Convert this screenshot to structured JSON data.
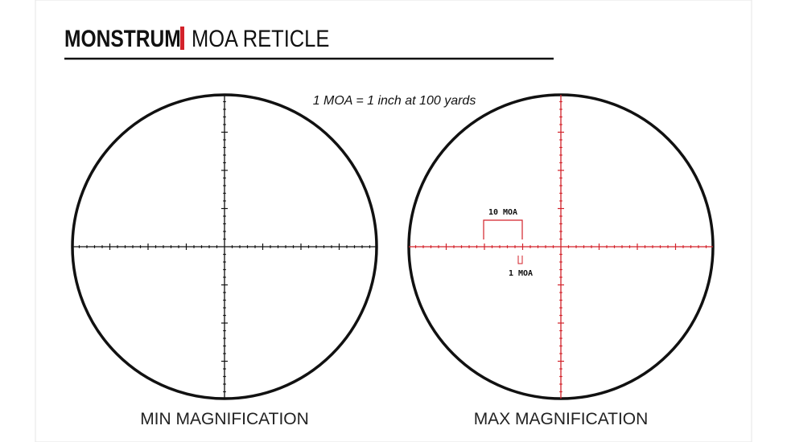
{
  "header": {
    "brand": "MONSTRUM",
    "title": "MOA RETICLE"
  },
  "note": "1 MOA = 1 inch at 100 yards",
  "reticles": [
    {
      "label": "MIN MAGNIFICATION"
    },
    {
      "label": "MAX MAGNIFICATION",
      "annotations": [
        "10 MOA",
        "1 MOA"
      ]
    }
  ]
}
